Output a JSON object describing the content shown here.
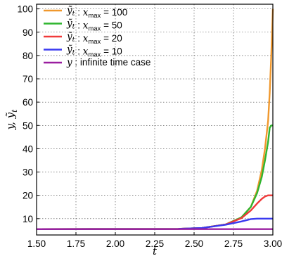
{
  "chart_data": {
    "type": "line",
    "xlabel": "t",
    "ylabel": "y, ỹ_t",
    "xlim": [
      1.5,
      3.0
    ],
    "ylim": [
      3,
      102
    ],
    "grid": true,
    "legend_placement": "top-left",
    "xticks": [
      1.5,
      1.75,
      2.0,
      2.25,
      2.5,
      2.75,
      3.0
    ],
    "xtick_labels": [
      "1.50",
      "1.75",
      "2.00",
      "2.25",
      "2.50",
      "2.75",
      "3.00"
    ],
    "yticks": [
      10,
      20,
      30,
      40,
      50,
      60,
      70,
      80,
      90,
      100
    ],
    "ytick_labels": [
      "10",
      "20",
      "30",
      "40",
      "50",
      "60",
      "70",
      "80",
      "90",
      "100"
    ],
    "series": [
      {
        "name": "ỹ_t  :  x_max = 100",
        "label_main": "ỹ",
        "label_sub": "t",
        "label_rest": "  :  x",
        "label_sub2": "max",
        "label_end": " = 100",
        "color": "#f0982d",
        "x": [
          1.5,
          2.4,
          2.55,
          2.7,
          2.8,
          2.86,
          2.9,
          2.93,
          2.95,
          2.97,
          2.98,
          2.99,
          3.0
        ],
        "y": [
          5.5,
          5.6,
          6.0,
          7.5,
          10.5,
          15,
          22,
          31,
          40,
          52,
          64,
          80,
          100
        ]
      },
      {
        "name": "ỹ_t  :  x_max = 50",
        "label_main": "ỹ",
        "label_sub": "t",
        "label_rest": "  :  x",
        "label_sub2": "max",
        "label_end": " = 50",
        "color": "#2fb52f",
        "x": [
          1.5,
          2.4,
          2.55,
          2.7,
          2.8,
          2.86,
          2.9,
          2.93,
          2.95,
          2.97,
          2.98,
          2.99,
          3.0
        ],
        "y": [
          5.5,
          5.6,
          6.0,
          7.5,
          10.5,
          15,
          21,
          28,
          35,
          43,
          49,
          50,
          50
        ]
      },
      {
        "name": "ỹ_t  :  x_max = 20",
        "label_main": "ỹ",
        "label_sub": "t",
        "label_rest": "  :  x",
        "label_sub2": "max",
        "label_end": " = 20",
        "color": "#f03a3a",
        "x": [
          1.5,
          2.4,
          2.55,
          2.7,
          2.8,
          2.86,
          2.9,
          2.93,
          2.95,
          2.97,
          2.98,
          3.0
        ],
        "y": [
          5.5,
          5.6,
          6.0,
          7.5,
          10.2,
          13.5,
          16.5,
          18.5,
          19.5,
          20,
          20,
          20
        ]
      },
      {
        "name": "ỹ_t  :  x_max = 10",
        "label_main": "ỹ",
        "label_sub": "t",
        "label_rest": "  :  x",
        "label_sub2": "max",
        "label_end": " = 10",
        "color": "#3a3af0",
        "x": [
          1.5,
          2.4,
          2.55,
          2.7,
          2.8,
          2.86,
          2.9,
          2.93,
          3.0
        ],
        "y": [
          5.5,
          5.6,
          6.0,
          7.4,
          8.8,
          9.8,
          10,
          10,
          10
        ]
      },
      {
        "name": "y : infinite time case",
        "label_main": "y",
        "label_sub": "",
        "label_rest": " : infinite time case",
        "label_sub2": "",
        "label_end": "",
        "color": "#9a1ea0",
        "x": [
          1.5,
          3.0
        ],
        "y": [
          5.5,
          5.5
        ]
      }
    ]
  }
}
